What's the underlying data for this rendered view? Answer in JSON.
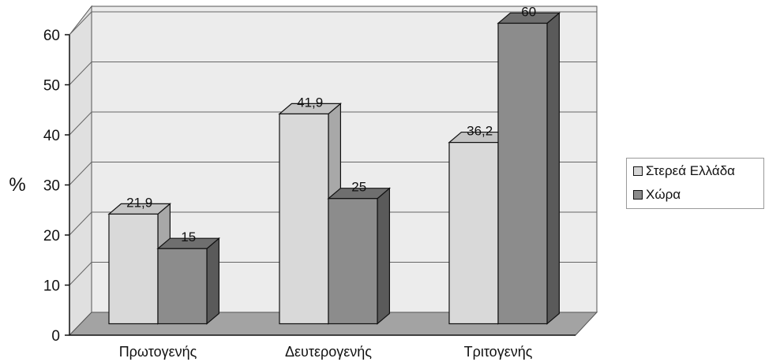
{
  "chart_data": {
    "type": "bar",
    "title": "",
    "xlabel": "",
    "ylabel": "%",
    "ylim": [
      0,
      60
    ],
    "yticks": [
      0,
      10,
      20,
      30,
      40,
      50,
      60
    ],
    "grid": true,
    "legend_position": "right",
    "categories": [
      "Πρωτογενής",
      "Δευτερογενής",
      "Τριτογενής"
    ],
    "series": [
      {
        "name": "Στερεά Ελλάδα",
        "values": [
          21.9,
          41.9,
          36.2
        ],
        "labels": [
          "21,9",
          "41,9",
          "36,2"
        ],
        "color": "#d6d6d6"
      },
      {
        "name": "Χώρα",
        "values": [
          15,
          25,
          60
        ],
        "labels": [
          "15",
          "25",
          "60"
        ],
        "color": "#8a8a8a"
      }
    ]
  }
}
